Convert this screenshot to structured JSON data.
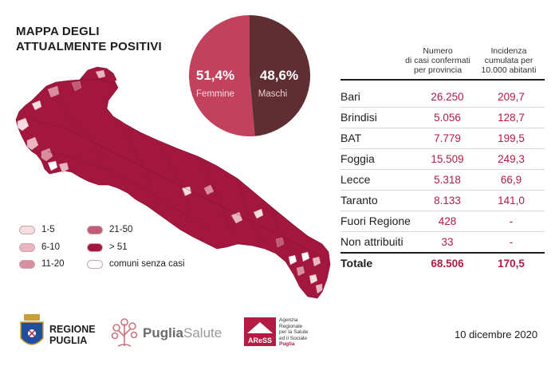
{
  "title": {
    "line1": "MAPPA DEGLI",
    "line2": "ATTUALMENTE POSITIVI"
  },
  "gender": {
    "female": {
      "percent": "51,4%",
      "label": "Femmine",
      "value": 51.4,
      "color": "#c2415c"
    },
    "male": {
      "percent": "48,6%",
      "label": "Maschi",
      "value": 48.6,
      "color": "#5e2e33"
    }
  },
  "table": {
    "header_cases": [
      "Numero",
      "di casi confermati",
      "per provincia"
    ],
    "header_incidence": [
      "Incidenza",
      "cumulata per",
      "10.000 abitanti"
    ],
    "rows": [
      {
        "name": "Bari",
        "cases": "26.250",
        "incidence": "209,7"
      },
      {
        "name": "Brindisi",
        "cases": "5.056",
        "incidence": "128,7"
      },
      {
        "name": "BAT",
        "cases": "7.779",
        "incidence": "199,5"
      },
      {
        "name": "Foggia",
        "cases": "15.509",
        "incidence": "249,3"
      },
      {
        "name": "Lecce",
        "cases": "5.318",
        "incidence": "66,9"
      },
      {
        "name": "Taranto",
        "cases": "8.133",
        "incidence": "141,0"
      },
      {
        "name": "Fuori Regione",
        "cases": "428",
        "incidence": "-"
      },
      {
        "name": "Non attribuiti",
        "cases": "33",
        "incidence": "-"
      }
    ],
    "total": {
      "name": "Totale",
      "cases": "68.506",
      "incidence": "170,5"
    }
  },
  "legend": [
    {
      "label": "1-5",
      "color": "#f6dde2"
    },
    {
      "label": "6-10",
      "color": "#eab5c0"
    },
    {
      "label": "11-20",
      "color": "#d98da0"
    },
    {
      "label": "21-50",
      "color": "#c25c76"
    },
    {
      "label": "> 51",
      "color": "#a3173f"
    },
    {
      "label": "comuni senza casi",
      "color": "#ffffff"
    }
  ],
  "colors": {
    "map_main": "#a3173f",
    "accent": "#b01c43"
  },
  "footer": {
    "regione_line1": "REGIONE",
    "regione_line2": "PUGLIA",
    "puglia_salute_a": "Puglia",
    "puglia_salute_b": "Salute",
    "aress_short": "AReSS",
    "aress_lines": [
      "Agenzia",
      "Regionale",
      "per la Salute",
      "ed il Sociale",
      "Puglia"
    ],
    "date": "10 dicembre 2020"
  }
}
